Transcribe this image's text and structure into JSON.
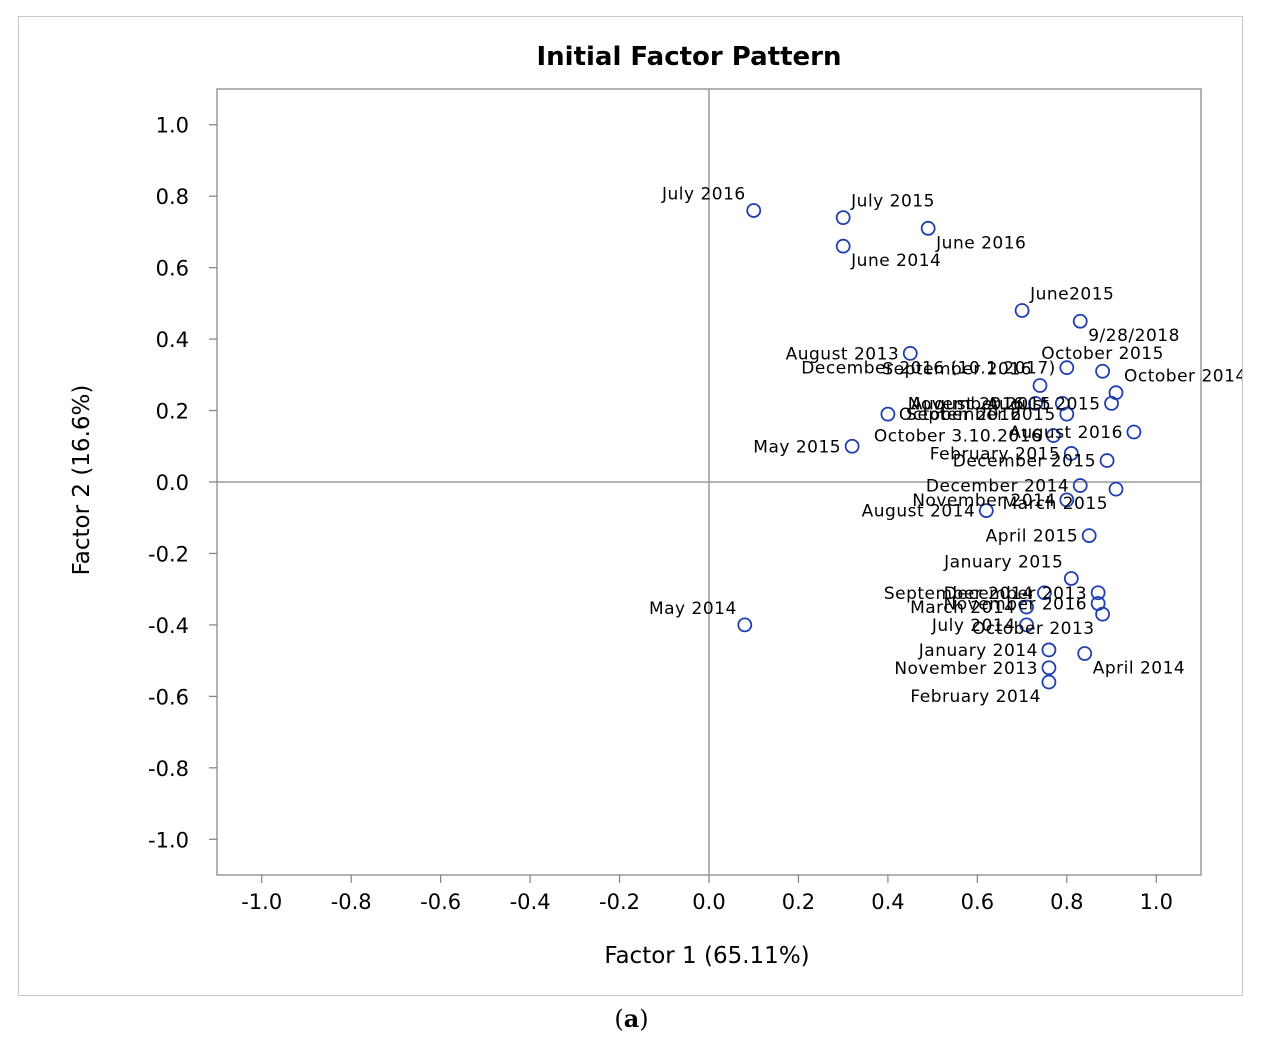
{
  "caption": {
    "open": "(",
    "letter": "a",
    "close": ")"
  },
  "colors": {
    "marker": "#1f3fb0",
    "axis": "#808080",
    "refline": "#9a9a9a",
    "text": "#000000"
  },
  "chart_data": {
    "type": "scatter",
    "title": "Initial Factor Pattern",
    "xlabel": "Factor 1 (65.11%)",
    "ylabel": "Factor 2 (16.6%)",
    "xlim": [
      -1.1,
      1.1
    ],
    "ylim": [
      -1.1,
      1.1
    ],
    "xticks": [
      -1.0,
      -0.8,
      -0.6,
      -0.4,
      -0.2,
      0.0,
      0.2,
      0.4,
      0.6,
      0.8,
      1.0
    ],
    "yticks": [
      1.0,
      0.8,
      0.6,
      0.4,
      0.2,
      0.0,
      -0.2,
      -0.4,
      -0.6,
      -0.8,
      -1.0
    ],
    "xtick_labels": [
      "-1.0",
      "-0.8",
      "-0.6",
      "-0.4",
      "-0.2",
      "0.0",
      "0.2",
      "0.4",
      "0.6",
      "0.8",
      "1.0"
    ],
    "ytick_labels": [
      "1.0",
      "0.8",
      "0.6",
      "0.4",
      "0.2",
      "0.0",
      "-0.2",
      "-0.4",
      "-0.6",
      "-0.8",
      "-1.0"
    ],
    "reference_lines": {
      "x": 0.0,
      "y": 0.0
    },
    "points": [
      {
        "label": "July 2016",
        "x": 0.1,
        "y": 0.76,
        "pos": "NW"
      },
      {
        "label": "July 2015",
        "x": 0.3,
        "y": 0.74,
        "pos": "NE"
      },
      {
        "label": "June 2016",
        "x": 0.49,
        "y": 0.71,
        "pos": "SE"
      },
      {
        "label": "June 2014",
        "x": 0.3,
        "y": 0.66,
        "pos": "SE"
      },
      {
        "label": "June2015",
        "x": 0.7,
        "y": 0.48,
        "pos": "NE"
      },
      {
        "label": "9/28/2018",
        "x": 0.83,
        "y": 0.45,
        "pos": "SE"
      },
      {
        "label": "August 2013",
        "x": 0.45,
        "y": 0.36,
        "pos": "W"
      },
      {
        "label": "December 2016 (10.1.2017)",
        "x": 0.8,
        "y": 0.32,
        "pos": "W"
      },
      {
        "label": "October 2015",
        "x": 0.88,
        "y": 0.31,
        "pos": "N"
      },
      {
        "label": "September 2016",
        "x": 0.74,
        "y": 0.27,
        "pos": "NW"
      },
      {
        "label": "October 2014",
        "x": 0.91,
        "y": 0.25,
        "pos": "NE"
      },
      {
        "label": "August 2016",
        "x": 0.73,
        "y": 0.22,
        "pos": "W"
      },
      {
        "label": "November 2015",
        "x": 0.79,
        "y": 0.22,
        "pos": "W"
      },
      {
        "label": "August 2015",
        "x": 0.9,
        "y": 0.22,
        "pos": "W"
      },
      {
        "label": "October 2016",
        "x": 0.4,
        "y": 0.19,
        "pos": "E"
      },
      {
        "label": "September 2015",
        "x": 0.8,
        "y": 0.19,
        "pos": "W"
      },
      {
        "label": "August 2016",
        "x": 0.95,
        "y": 0.14,
        "pos": "W"
      },
      {
        "label": "May 2015",
        "x": 0.32,
        "y": 0.1,
        "pos": "W"
      },
      {
        "label": "October 3.10.2016",
        "x": 0.77,
        "y": 0.13,
        "pos": "W"
      },
      {
        "label": "February 2015",
        "x": 0.81,
        "y": 0.08,
        "pos": "W"
      },
      {
        "label": "December 2015",
        "x": 0.89,
        "y": 0.06,
        "pos": "W"
      },
      {
        "label": "December 2014",
        "x": 0.83,
        "y": -0.01,
        "pos": "W"
      },
      {
        "label": "November 2014",
        "x": 0.8,
        "y": -0.05,
        "pos": "W"
      },
      {
        "label": "March 2015",
        "x": 0.91,
        "y": -0.02,
        "pos": "SW"
      },
      {
        "label": "August 2014",
        "x": 0.62,
        "y": -0.08,
        "pos": "W"
      },
      {
        "label": "April 2015",
        "x": 0.85,
        "y": -0.15,
        "pos": "W"
      },
      {
        "label": "January 2015",
        "x": 0.81,
        "y": -0.27,
        "pos": "NW"
      },
      {
        "label": "September 2014",
        "x": 0.75,
        "y": -0.31,
        "pos": "W"
      },
      {
        "label": "December 2013",
        "x": 0.87,
        "y": -0.31,
        "pos": "W"
      },
      {
        "label": "March 2014",
        "x": 0.71,
        "y": -0.35,
        "pos": "W"
      },
      {
        "label": "November 2016",
        "x": 0.87,
        "y": -0.34,
        "pos": "W"
      },
      {
        "label": "July 2014",
        "x": 0.71,
        "y": -0.4,
        "pos": "W"
      },
      {
        "label": "October 2013",
        "x": 0.88,
        "y": -0.37,
        "pos": "SW"
      },
      {
        "label": "May 2014",
        "x": 0.08,
        "y": -0.4,
        "pos": "NW"
      },
      {
        "label": "January 2014",
        "x": 0.76,
        "y": -0.47,
        "pos": "W"
      },
      {
        "label": "November 2013",
        "x": 0.76,
        "y": -0.52,
        "pos": "W"
      },
      {
        "label": "April 2014",
        "x": 0.84,
        "y": -0.48,
        "pos": "SE"
      },
      {
        "label": "February 2014",
        "x": 0.76,
        "y": -0.56,
        "pos": "SW"
      }
    ]
  }
}
